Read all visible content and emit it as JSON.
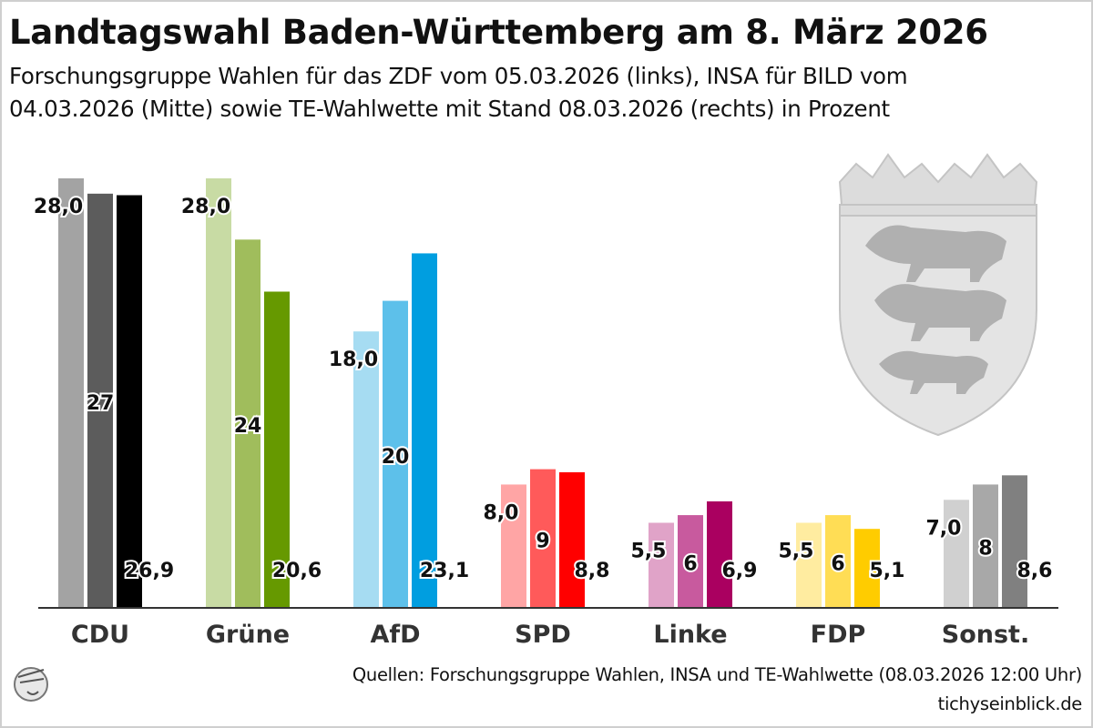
{
  "title": "Landtagswahl Baden-Württemberg am 8. März 2026",
  "subtitle_line1": "Forschungsgruppe Wahlen für das ZDF vom 05.03.2026 (links), INSA für BILD vom",
  "subtitle_line2": "04.03.2026 (Mitte) sowie TE-Wahlwette mit Stand 08.03.2026 (rechts) in Prozent",
  "source": "Quellen: Forschungsgruppe Wahlen, INSA und TE-Wahlwette (08.03.2026 12:00 Uhr)",
  "site": "tichyseinblick.de",
  "icons": {
    "watermark": "baden-wuerttemberg-coat-of-arms-icon",
    "logo": "hermes-head-logo-icon"
  },
  "chart_data": {
    "type": "bar",
    "title": "Landtagswahl Baden-Württemberg am 8. März 2026",
    "xlabel": "",
    "ylabel": "Prozent",
    "ylim": [
      0,
      28
    ],
    "grid": false,
    "categories": [
      "CDU",
      "Grüne",
      "AfD",
      "SPD",
      "Linke",
      "FDP",
      "Sonst."
    ],
    "series": [
      {
        "name": "Forschungsgruppe Wahlen (05.03.2026)",
        "values": [
          28.0,
          28.0,
          18.0,
          8.0,
          5.5,
          5.5,
          7.0
        ],
        "labels": [
          "28,0",
          "28,0",
          "18,0",
          "8,0",
          "5,5",
          "5,5",
          "7,0"
        ]
      },
      {
        "name": "INSA (04.03.2026)",
        "values": [
          27,
          24,
          20,
          9,
          6,
          6,
          8
        ],
        "labels": [
          "27",
          "24",
          "20",
          "9",
          "6",
          "6",
          "8"
        ]
      },
      {
        "name": "TE-Wahlwette (08.03.2026)",
        "values": [
          26.9,
          20.6,
          23.1,
          8.8,
          6.9,
          5.1,
          8.6
        ],
        "labels": [
          "26,9",
          "20,6",
          "23,1",
          "8,8",
          "6,9",
          "5,1",
          "8,6"
        ]
      }
    ],
    "colors": [
      [
        "#a3a3a3",
        "#5c5c5c",
        "#000000"
      ],
      [
        "#c8dba4",
        "#a0bd5c",
        "#669900"
      ],
      [
        "#a6dcf2",
        "#5dc0ea",
        "#009ee0"
      ],
      [
        "#ffa5a5",
        "#ff5a5a",
        "#ff0000"
      ],
      [
        "#e0a3c8",
        "#c85a9e",
        "#aa0060"
      ],
      [
        "#ffeca0",
        "#ffdd55",
        "#ffcc00"
      ],
      [
        "#d0d0d0",
        "#a8a8a8",
        "#808080"
      ]
    ]
  }
}
